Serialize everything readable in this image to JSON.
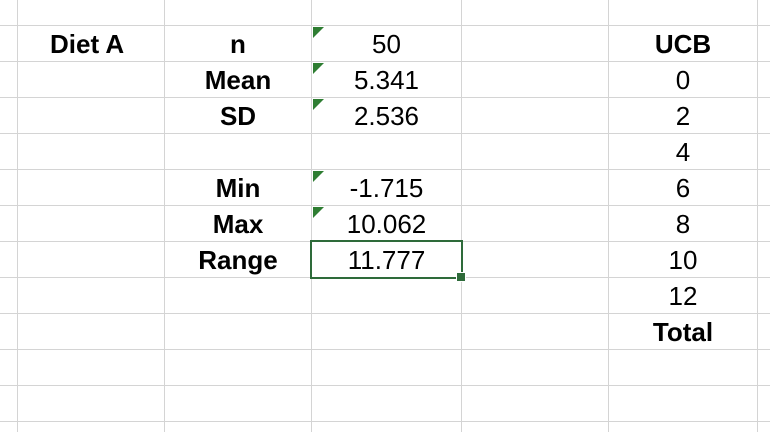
{
  "sheet": {
    "diet_label": "Diet A",
    "stats": [
      {
        "label": "n",
        "value": "50",
        "flag": true
      },
      {
        "label": "Mean",
        "value": "5.341",
        "flag": true
      },
      {
        "label": "SD",
        "value": "2.536",
        "flag": true
      },
      {
        "label": "Min",
        "value": "-1.715",
        "flag": true
      },
      {
        "label": "Max",
        "value": "10.062",
        "flag": true
      },
      {
        "label": "Range",
        "value": "11.777",
        "flag": false
      }
    ],
    "ucb": {
      "header": "UCB",
      "values": [
        "0",
        "2",
        "4",
        "6",
        "8",
        "10",
        "12"
      ],
      "total_label": "Total"
    },
    "colors": {
      "grid": "#d4d4d4",
      "selection": "#2e6b3a",
      "error_flag": "#2e7d32"
    }
  }
}
